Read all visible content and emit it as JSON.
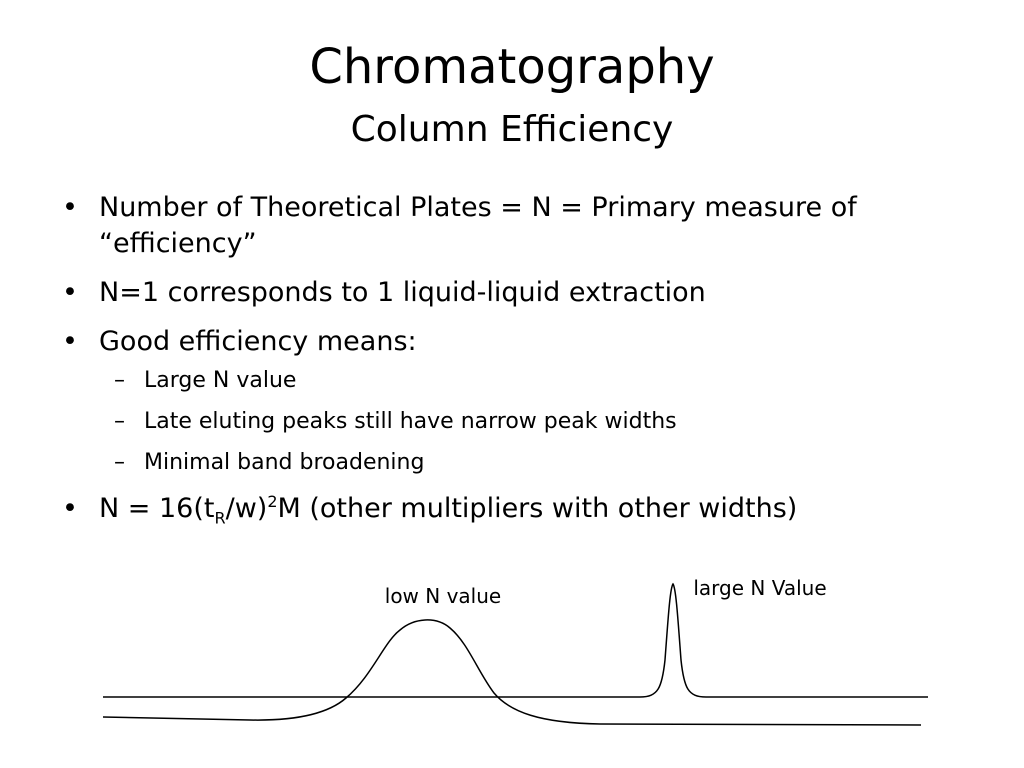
{
  "slide": {
    "title": "Chromatography",
    "subtitle": "Column Efficiency",
    "bullets": [
      {
        "text": "Number of Theoretical Plates = N = Primary measure of “efficiency”"
      },
      {
        "text": "N=1 corresponds to 1 liquid-liquid extraction"
      },
      {
        "text": "Good efficiency means:"
      },
      {
        "text": "N = 16(t",
        "sub": "R",
        "mid": "/w)",
        "sup": "2",
        "tail": "M (other multipliers with other widths)"
      }
    ],
    "subitems": [
      "Large N value",
      "Late eluting peaks still have narrow peak widths",
      "Minimal band broadening"
    ],
    "bullet_symbol": "•",
    "dash_symbol": "–"
  },
  "figure": {
    "low_label": "low N value",
    "high_label": "large N Value"
  }
}
